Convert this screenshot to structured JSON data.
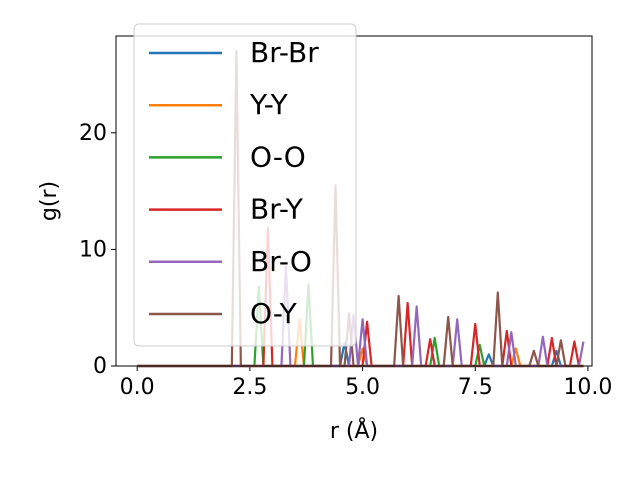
{
  "chart_data": {
    "type": "line",
    "xlabel": "r (Å)",
    "ylabel": "g(r)",
    "x": [
      0,
      0.1,
      0.2,
      0.3,
      0.4,
      0.5,
      0.6,
      0.7,
      0.8,
      0.9,
      1,
      1.1,
      1.2,
      1.3,
      1.4,
      1.5,
      1.6,
      1.7,
      1.8,
      1.9,
      2,
      2.1,
      2.2,
      2.3,
      2.4,
      2.5,
      2.6,
      2.7,
      2.8,
      2.9,
      3,
      3.1,
      3.2,
      3.3,
      3.4,
      3.5,
      3.6,
      3.7,
      3.8,
      3.9,
      4,
      4.1,
      4.2,
      4.3,
      4.4,
      4.5,
      4.6,
      4.7,
      4.8,
      4.9,
      5,
      5.1,
      5.2,
      5.3,
      5.4,
      5.5,
      5.6,
      5.7,
      5.8,
      5.9,
      6,
      6.1,
      6.2,
      6.3,
      6.4,
      6.5,
      6.6,
      6.7,
      6.8,
      6.9,
      7,
      7.1,
      7.2,
      7.3,
      7.4,
      7.5,
      7.6,
      7.7,
      7.8,
      7.9,
      8,
      8.1,
      8.2,
      8.3,
      8.4,
      8.5,
      8.6,
      8.7,
      8.8,
      8.9,
      9,
      9.1,
      9.2,
      9.3,
      9.4,
      9.5,
      9.6,
      9.7,
      9.8,
      9.9
    ],
    "series": [
      {
        "name": "Br-Br",
        "color": "#1f77b4",
        "values": [
          0,
          0,
          0,
          0,
          0,
          0,
          0,
          0,
          0,
          0,
          0,
          0,
          0,
          0,
          0,
          0,
          0,
          0,
          0,
          0,
          0,
          0,
          0,
          0,
          0,
          0,
          0,
          0,
          0,
          0,
          0,
          0,
          0,
          0,
          0,
          0,
          0,
          0,
          0,
          0,
          0,
          0,
          0,
          0,
          0,
          0,
          2,
          0,
          0,
          0,
          0,
          0,
          0,
          0,
          0,
          0,
          0,
          0,
          0,
          0,
          0,
          0,
          0,
          0,
          0,
          0,
          0,
          0,
          0,
          0,
          0,
          0,
          0,
          0,
          0,
          0,
          0,
          0,
          1,
          0,
          0,
          0,
          0,
          0,
          0,
          0,
          0,
          0,
          0,
          0,
          0,
          0,
          0,
          1.3,
          0,
          0,
          0,
          0,
          0,
          0
        ]
      },
      {
        "name": "Y-Y",
        "color": "#ff7f0e",
        "values": [
          0,
          0,
          0,
          0,
          0,
          0,
          0,
          0,
          0,
          0,
          0,
          0,
          0,
          0,
          0,
          0,
          0,
          0,
          0,
          0,
          0,
          0,
          0,
          0,
          0,
          0,
          0,
          0,
          0,
          0,
          0,
          0,
          0,
          0,
          0,
          0,
          4,
          0,
          0,
          0,
          0,
          0,
          0,
          0,
          0,
          0,
          0,
          0,
          0,
          0,
          1.5,
          0,
          0,
          0,
          0,
          0,
          0,
          0,
          0,
          0,
          0,
          0,
          0,
          0,
          0,
          0,
          0,
          0,
          0,
          0,
          0,
          0,
          0,
          0,
          0,
          0,
          0,
          0,
          0,
          0,
          0,
          0,
          0,
          0,
          1.5,
          0,
          0,
          0,
          0,
          0,
          0,
          0,
          0,
          0,
          0,
          0,
          0,
          0,
          0,
          0
        ]
      },
      {
        "name": "O-O",
        "color": "#2ca02c",
        "values": [
          0,
          0,
          0,
          0,
          0,
          0,
          0,
          0,
          0,
          0,
          0,
          0,
          0,
          0,
          0,
          0,
          0,
          0,
          0,
          0,
          0,
          0,
          0,
          0,
          0,
          0,
          0,
          6.8,
          0,
          0,
          0,
          0,
          0,
          0,
          0,
          0,
          0,
          0,
          7,
          0,
          0,
          0,
          0,
          0,
          0,
          0,
          0,
          0,
          0,
          0,
          0,
          0,
          0,
          0,
          0,
          0,
          0,
          0,
          0,
          0,
          0,
          0,
          0,
          0,
          0,
          0,
          2.4,
          0,
          0,
          0,
          0,
          0,
          0,
          0,
          0,
          0,
          1.8,
          0,
          0,
          0,
          0,
          0,
          0,
          0,
          0,
          0,
          0,
          0,
          0,
          0,
          0,
          0,
          0,
          0,
          0,
          0,
          0,
          0,
          0,
          0
        ]
      },
      {
        "name": "Br-Y",
        "color": "#d62728",
        "values": [
          0,
          0,
          0,
          0,
          0,
          0,
          0,
          0,
          0,
          0,
          0,
          0,
          0,
          0,
          0,
          0,
          0,
          0,
          0,
          0,
          0,
          0,
          0,
          0,
          0,
          0,
          0,
          0,
          0,
          11.8,
          0,
          0,
          0,
          0,
          0,
          0,
          0,
          0,
          0,
          0,
          0,
          0,
          0,
          0,
          0,
          0,
          0,
          0,
          0,
          0,
          0,
          3.8,
          0,
          0,
          0,
          0,
          0,
          0,
          0,
          0,
          5.4,
          0,
          0,
          0,
          0,
          2.3,
          0,
          0,
          0,
          0,
          0,
          0,
          0,
          0,
          0,
          3.6,
          0,
          0,
          0,
          0,
          0,
          0,
          3,
          0,
          0,
          0,
          0,
          0,
          0,
          0,
          0,
          0,
          2.4,
          0,
          0,
          0,
          0,
          2.1,
          0,
          0
        ]
      },
      {
        "name": "Br-O",
        "color": "#9467bd",
        "values": [
          0,
          0,
          0,
          0,
          0,
          0,
          0,
          0,
          0,
          0,
          0,
          0,
          0,
          0,
          0,
          0,
          0,
          0,
          0,
          0,
          0,
          0,
          0,
          0,
          0,
          0,
          0,
          0,
          0,
          0,
          0,
          0,
          0,
          8.5,
          0,
          0,
          0,
          0,
          0,
          0,
          0,
          0,
          0,
          0,
          0,
          0,
          0,
          0,
          4.4,
          0,
          4,
          0,
          0,
          0,
          0,
          0,
          0,
          0,
          0,
          0,
          0,
          0,
          5.1,
          0,
          0,
          0,
          0,
          0,
          0,
          0,
          0,
          4,
          0,
          0,
          0,
          0,
          0,
          0,
          0,
          0,
          0,
          0,
          0,
          2.9,
          0,
          0,
          0,
          0,
          0,
          0,
          2.5,
          0,
          0,
          0,
          0,
          0,
          0,
          0,
          0,
          2.1
        ]
      },
      {
        "name": "O-Y",
        "color": "#8c564b",
        "values": [
          0,
          0,
          0,
          0,
          0,
          0,
          0,
          0,
          0,
          0,
          0,
          0,
          0,
          0,
          0,
          0,
          0,
          0,
          0,
          0,
          0,
          0,
          27,
          0,
          0,
          0,
          0,
          0,
          0,
          0,
          0,
          0,
          0,
          0,
          0,
          0,
          0,
          0,
          0,
          0,
          0,
          0,
          0,
          0,
          15.5,
          0,
          0,
          4.5,
          0,
          0,
          0,
          0,
          0,
          0,
          0,
          0,
          0,
          0,
          6,
          0,
          0,
          0,
          0,
          0,
          0,
          0,
          0,
          0,
          0,
          4.2,
          0,
          0,
          0,
          0,
          0,
          0,
          0,
          0,
          0,
          0,
          6.3,
          0,
          0,
          0,
          0,
          0,
          0,
          0,
          1.3,
          0,
          0,
          0,
          0,
          0,
          2.2,
          0,
          0,
          0,
          0,
          0
        ]
      }
    ],
    "xlim": [
      -0.47,
      10.09
    ],
    "ylim": [
      0,
      28.3
    ],
    "xticks": [
      {
        "value": 0,
        "label": "0.0"
      },
      {
        "value": 2.5,
        "label": "2.5"
      },
      {
        "value": 5,
        "label": "5.0"
      },
      {
        "value": 7.5,
        "label": "7.5"
      },
      {
        "value": 10,
        "label": "10.0"
      }
    ],
    "yticks": [
      0,
      10,
      20
    ],
    "legend": "upper left"
  }
}
